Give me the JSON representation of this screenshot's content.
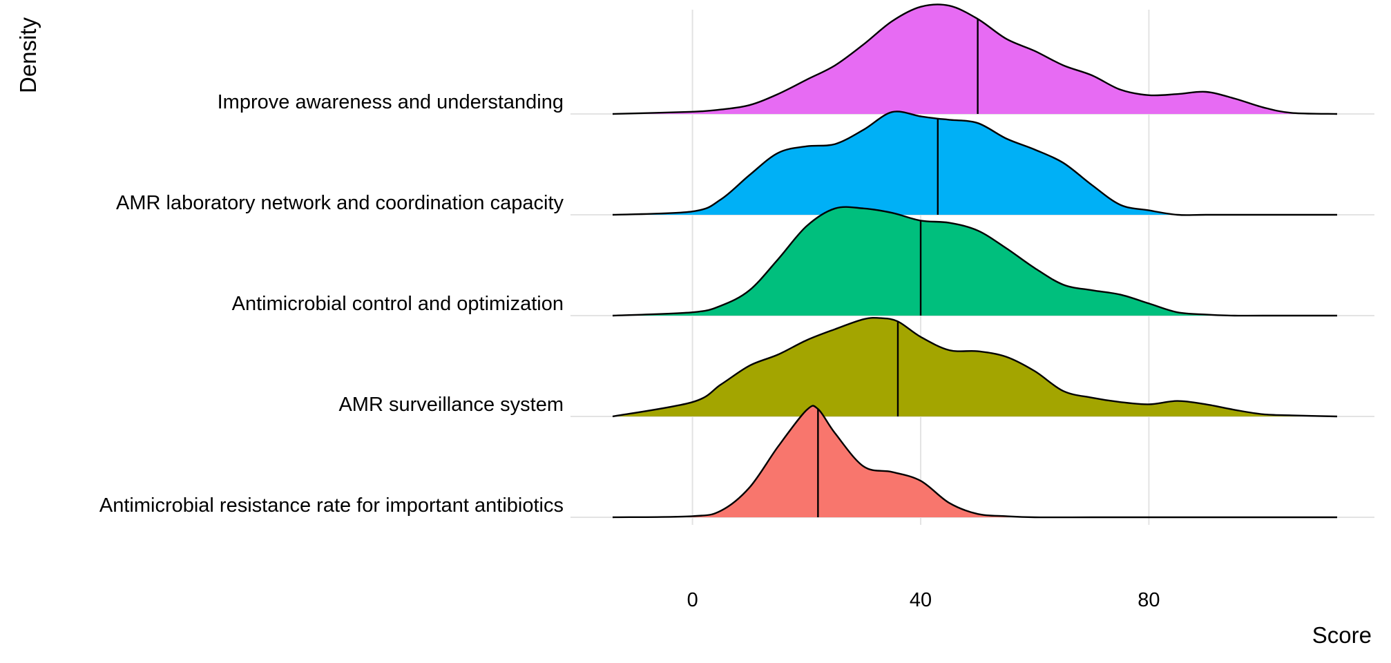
{
  "chart_data": {
    "type": "area",
    "subtype": "ridgeline density",
    "xlabel": "Score",
    "ylabel": "Density",
    "xlim": [
      -14,
      113
    ],
    "x_ticks": [
      0,
      40,
      80
    ],
    "x_tick_labels": [
      "0",
      "40",
      "80"
    ],
    "grid": true,
    "legend": "none",
    "series": [
      {
        "name": "Antimicrobial resistance rate for important antibiotics",
        "color": "#F8766D",
        "median": 22,
        "x": [
          -14,
          0,
          5,
          10,
          15,
          20,
          22,
          25,
          30,
          35,
          40,
          45,
          50,
          55,
          60,
          70,
          80,
          90,
          100,
          113
        ],
        "density": [
          0.0,
          0.01,
          0.06,
          0.27,
          0.64,
          0.97,
          0.98,
          0.76,
          0.46,
          0.41,
          0.33,
          0.13,
          0.03,
          0.01,
          0.0,
          0.0,
          0.0,
          0.0,
          0.0,
          0.0
        ]
      },
      {
        "name": "AMR surveillance system",
        "color": "#A3A500",
        "median": 36,
        "x": [
          -14,
          0,
          5,
          10,
          15,
          20,
          25,
          30,
          33,
          36,
          40,
          45,
          50,
          55,
          60,
          65,
          70,
          75,
          80,
          85,
          90,
          95,
          100,
          105,
          113
        ],
        "density": [
          0.0,
          0.13,
          0.29,
          0.46,
          0.56,
          0.69,
          0.79,
          0.88,
          0.89,
          0.86,
          0.72,
          0.6,
          0.59,
          0.54,
          0.41,
          0.23,
          0.17,
          0.13,
          0.11,
          0.14,
          0.11,
          0.06,
          0.02,
          0.01,
          0.0
        ]
      },
      {
        "name": "Antimicrobial control and optimization",
        "color": "#00BF7D",
        "median": 40,
        "x": [
          -14,
          0,
          5,
          10,
          15,
          20,
          25,
          30,
          35,
          40,
          45,
          50,
          55,
          60,
          65,
          70,
          75,
          80,
          85,
          90,
          95,
          100,
          113
        ],
        "density": [
          0.0,
          0.03,
          0.09,
          0.23,
          0.51,
          0.81,
          0.97,
          0.97,
          0.93,
          0.86,
          0.84,
          0.77,
          0.61,
          0.43,
          0.28,
          0.23,
          0.19,
          0.11,
          0.03,
          0.01,
          0.0,
          0.0,
          0.0
        ]
      },
      {
        "name": "AMR laboratory network and coordination capacity",
        "color": "#00B0F6",
        "median": 43,
        "x": [
          -14,
          0,
          5,
          10,
          15,
          20,
          25,
          30,
          35,
          40,
          43,
          45,
          50,
          55,
          60,
          65,
          70,
          75,
          80,
          85,
          90,
          100,
          113
        ],
        "density": [
          0.0,
          0.03,
          0.14,
          0.36,
          0.56,
          0.62,
          0.64,
          0.77,
          0.93,
          0.89,
          0.87,
          0.86,
          0.83,
          0.69,
          0.59,
          0.47,
          0.27,
          0.09,
          0.04,
          0.0,
          0.0,
          0.0,
          0.0
        ]
      },
      {
        "name": "Improve awareness and understanding",
        "color": "#E76BF3",
        "median": 50,
        "x": [
          -14,
          0,
          5,
          10,
          15,
          20,
          25,
          30,
          35,
          40,
          45,
          50,
          55,
          60,
          65,
          70,
          75,
          80,
          85,
          90,
          95,
          100,
          105,
          113
        ],
        "density": [
          0.0,
          0.02,
          0.04,
          0.08,
          0.18,
          0.31,
          0.44,
          0.63,
          0.84,
          0.97,
          0.98,
          0.86,
          0.68,
          0.57,
          0.44,
          0.35,
          0.22,
          0.17,
          0.18,
          0.2,
          0.14,
          0.06,
          0.01,
          0.0
        ]
      }
    ]
  }
}
